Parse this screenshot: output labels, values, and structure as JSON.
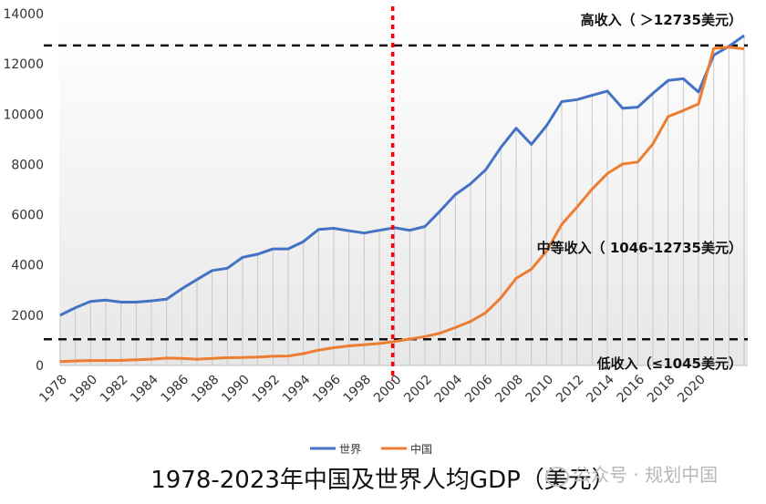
{
  "chart_data": {
    "type": "line",
    "title": "1978-2023年中国及世界人均GDP（美元）",
    "x": [
      1978,
      1979,
      1980,
      1981,
      1982,
      1983,
      1984,
      1985,
      1986,
      1987,
      1988,
      1989,
      1990,
      1991,
      1992,
      1993,
      1994,
      1995,
      1996,
      1997,
      1998,
      1999,
      2000,
      2001,
      2002,
      2003,
      2004,
      2005,
      2006,
      2007,
      2008,
      2009,
      2010,
      2011,
      2012,
      2013,
      2014,
      2015,
      2016,
      2017,
      2018,
      2019,
      2020,
      2021,
      2022,
      2023
    ],
    "x_tick_labels": [
      "1978",
      "1980",
      "1982",
      "1984",
      "1986",
      "1988",
      "1990",
      "1992",
      "1994",
      "1996",
      "1998",
      "2000",
      "2002",
      "2004",
      "2006",
      "2008",
      "2010",
      "2012",
      "2014",
      "2016",
      "2018",
      "2020"
    ],
    "ylim": [
      0,
      14000
    ],
    "y_ticks": [
      "0",
      "2000",
      "4000",
      "6000",
      "8000",
      "10000",
      "12000",
      "14000"
    ],
    "series": [
      {
        "name": "世界",
        "color": "#4472c4",
        "values": [
          2000,
          2300,
          2550,
          2600,
          2520,
          2520,
          2570,
          2640,
          3050,
          3420,
          3780,
          3870,
          4300,
          4430,
          4640,
          4640,
          4930,
          5410,
          5460,
          5360,
          5270,
          5380,
          5480,
          5380,
          5530,
          6150,
          6800,
          7230,
          7790,
          8680,
          9440,
          8800,
          9540,
          10500,
          10580,
          10750,
          10920,
          10240,
          10280,
          10830,
          11340,
          11410,
          10880,
          12350,
          12700,
          13130
        ]
      },
      {
        "name": "中国",
        "color": "#ed7d31",
        "values": [
          156,
          183,
          195,
          197,
          203,
          225,
          251,
          294,
          282,
          252,
          283,
          310,
          317,
          333,
          366,
          377,
          473,
          609,
          709,
          781,
          828,
          873,
          959,
          1053,
          1149,
          1289,
          1509,
          1753,
          2099,
          2693,
          3468,
          3832,
          4550,
          5614,
          6301,
          7020,
          7636,
          8016,
          8094,
          8817,
          9905,
          10144,
          10409,
          12618,
          12670,
          12600
        ]
      }
    ],
    "reference_lines": [
      {
        "y": 12735,
        "label": "高收入（ ＞12735美元）"
      },
      {
        "y": 1045,
        "label": "低收入（≤1045美元）"
      }
    ],
    "middle_band_label": "中等收入（ 1046-12735美元）",
    "vertical_marker_year": 2000,
    "vertical_marker_color": "#ff0000",
    "grid": false,
    "drop_lines": true,
    "legend_position": "bottom"
  },
  "watermark": "公众号 · 规划中国"
}
